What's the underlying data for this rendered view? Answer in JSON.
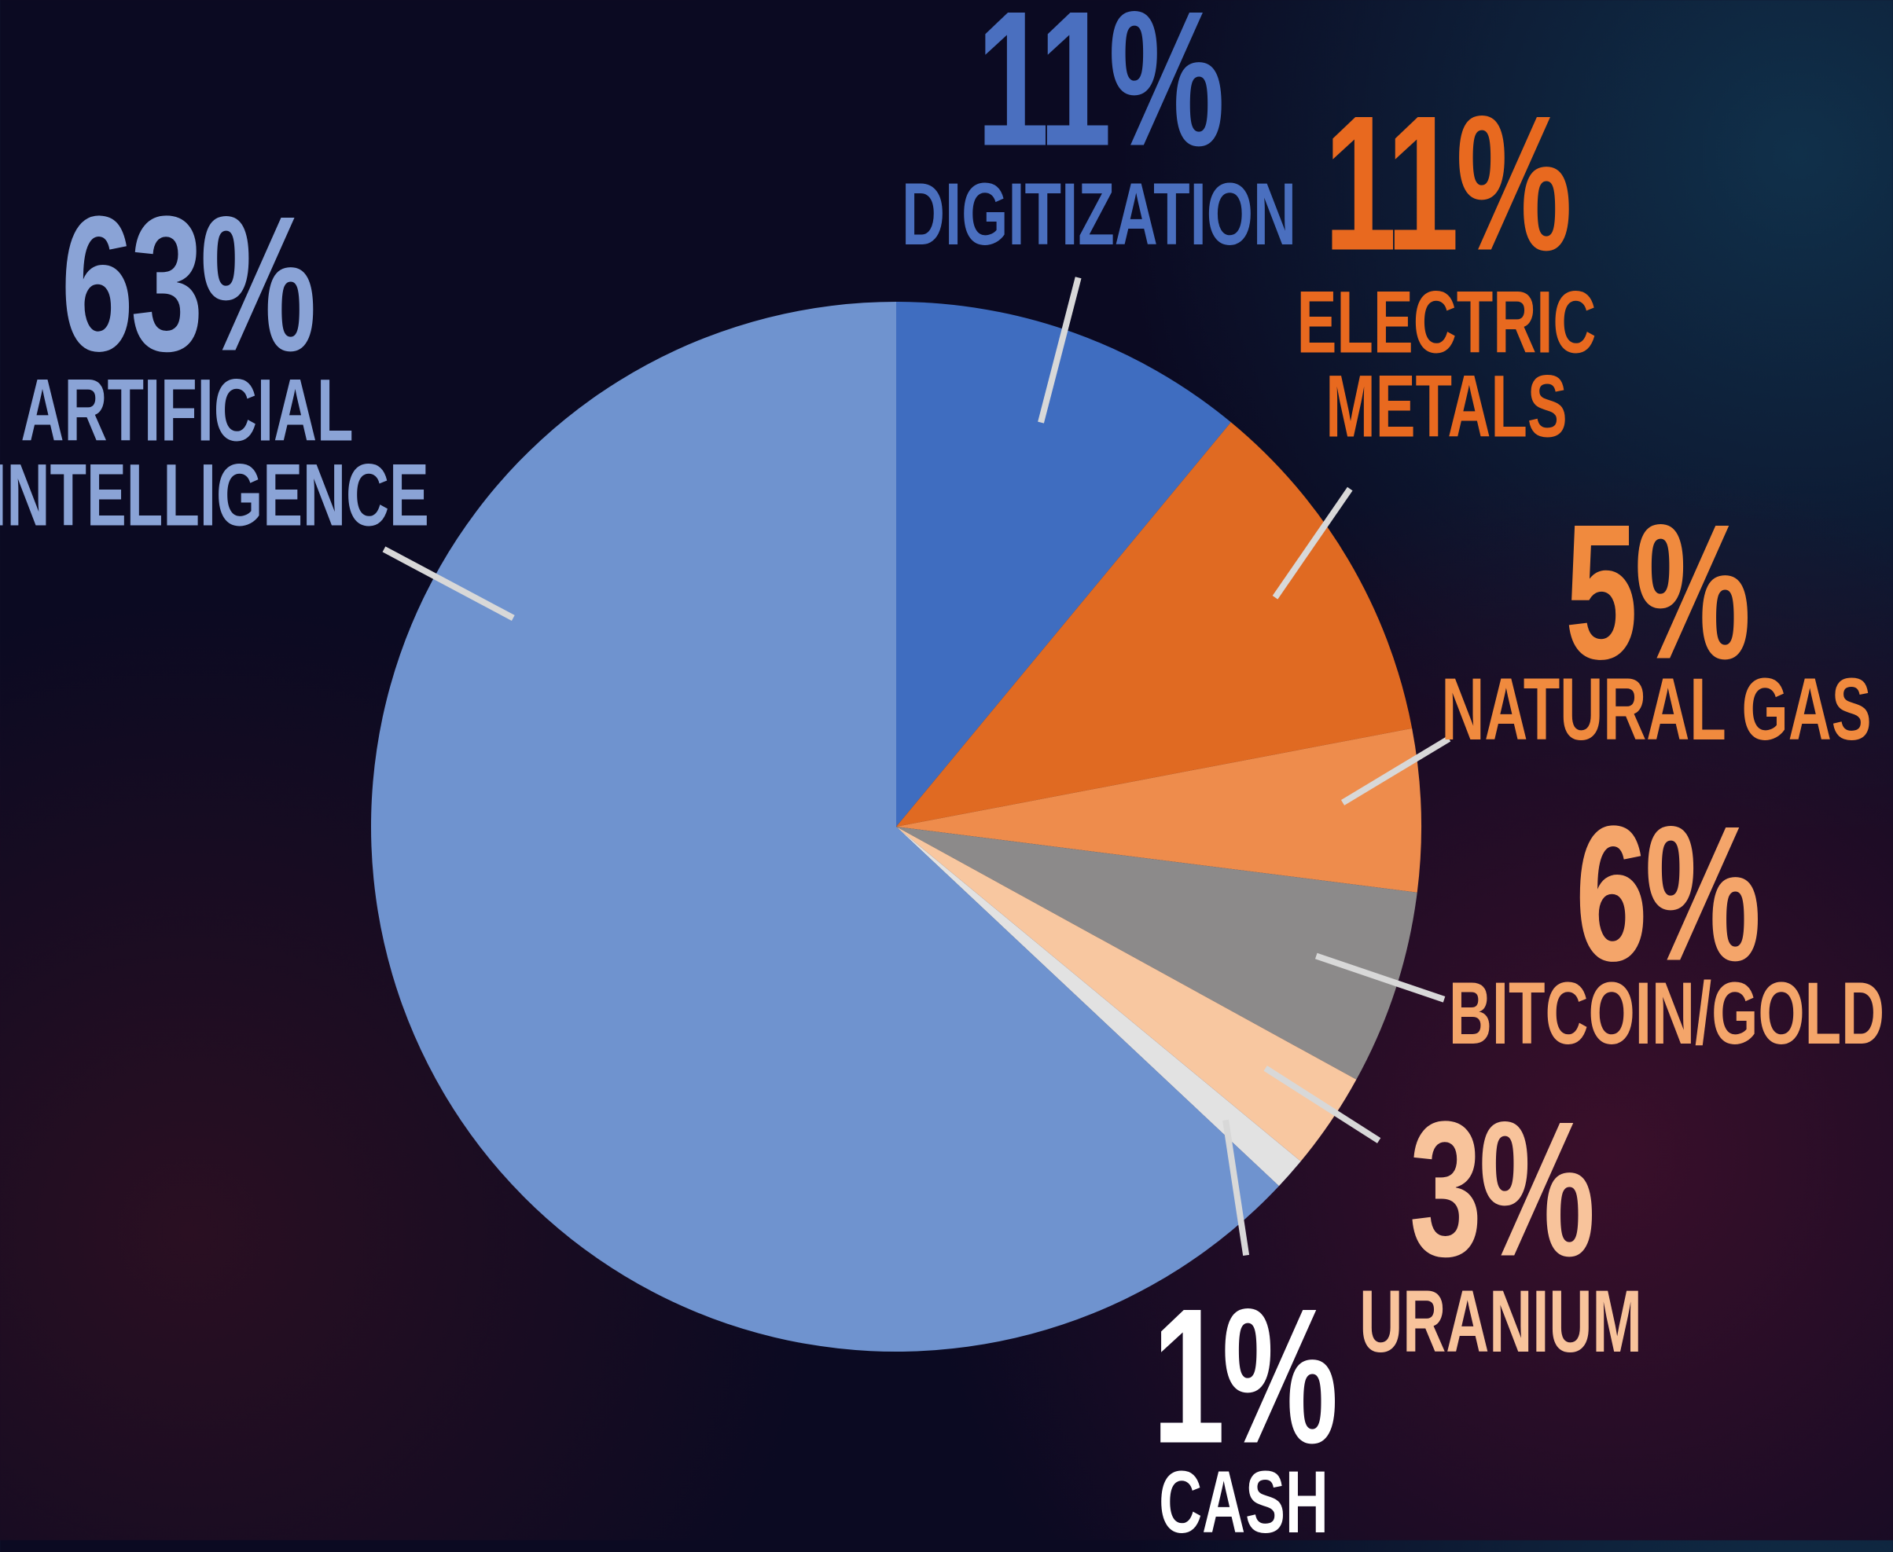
{
  "chart_data": {
    "type": "pie",
    "categories": [
      "DIGITIZATION",
      "ELECTRIC METALS",
      "NATURAL GAS",
      "BITCOIN/GOLD",
      "URANIUM",
      "CASH",
      "ARTIFICIAL INTELLIGENCE"
    ],
    "values": [
      11,
      11,
      5,
      6,
      3,
      1,
      63
    ],
    "value_labels": [
      "11%",
      "11%",
      "5%",
      "6%",
      "3%",
      "1%",
      "63%"
    ],
    "colors": [
      "#3f6dc0",
      "#e06a22",
      "#ee8c4c",
      "#8c8a8a",
      "#f8c7a0",
      "#e2e2e2",
      "#6f93cf"
    ],
    "label_colors": [
      "#4a6fbf",
      "#e8691f",
      "#f08a3e",
      "#f4a56a",
      "#f8c39b",
      "#ffffff",
      "#8aa3d6"
    ]
  }
}
